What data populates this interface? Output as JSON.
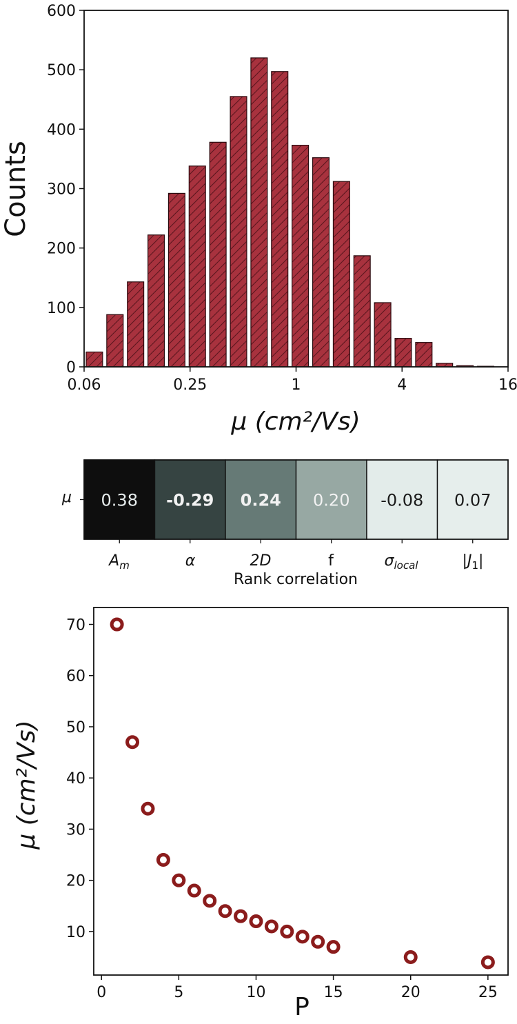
{
  "chart_data": [
    {
      "type": "bar",
      "xlabel": "μ (cm²/Vs)",
      "ylabel": "Counts",
      "x_scale": "log2",
      "xlim": [
        0.0625,
        16
      ],
      "ylim": [
        0,
        600
      ],
      "xticks": [
        "0.06",
        "0.25",
        "1",
        "4",
        "16"
      ],
      "yticks": [
        "0",
        "100",
        "200",
        "300",
        "400",
        "500",
        "600"
      ],
      "bar_color": "#a8323e",
      "bars": [
        {
          "left": 0.0625,
          "right": 0.0818,
          "count": 25
        },
        {
          "left": 0.0818,
          "right": 0.1071,
          "count": 88
        },
        {
          "left": 0.1071,
          "right": 0.1402,
          "count": 143
        },
        {
          "left": 0.1402,
          "right": 0.1835,
          "count": 222
        },
        {
          "left": 0.1835,
          "right": 0.2402,
          "count": 292
        },
        {
          "left": 0.2402,
          "right": 0.3145,
          "count": 338
        },
        {
          "left": 0.3145,
          "right": 0.4117,
          "count": 378
        },
        {
          "left": 0.4117,
          "right": 0.5389,
          "count": 455
        },
        {
          "left": 0.5389,
          "right": 0.7055,
          "count": 520
        },
        {
          "left": 0.7055,
          "right": 0.9236,
          "count": 497
        },
        {
          "left": 0.9236,
          "right": 1.209,
          "count": 373
        },
        {
          "left": 1.209,
          "right": 1.583,
          "count": 352
        },
        {
          "left": 1.583,
          "right": 2.072,
          "count": 312
        },
        {
          "left": 2.072,
          "right": 2.712,
          "count": 187
        },
        {
          "left": 2.712,
          "right": 3.551,
          "count": 108
        },
        {
          "left": 3.551,
          "right": 4.648,
          "count": 48
        },
        {
          "left": 4.648,
          "right": 6.085,
          "count": 41
        },
        {
          "left": 6.085,
          "right": 7.966,
          "count": 6
        },
        {
          "left": 7.966,
          "right": 10.43,
          "count": 2
        },
        {
          "left": 10.43,
          "right": 13.65,
          "count": 1
        }
      ]
    },
    {
      "type": "heatmap",
      "row_label": "μ",
      "xlabel": "Rank correlation",
      "columns": [
        {
          "label": "A_m",
          "value": "0.38",
          "bold": false
        },
        {
          "label": "α",
          "value": "-0.29",
          "bold": true
        },
        {
          "label": "2D",
          "value": "0.24",
          "bold": true
        },
        {
          "label": "f",
          "value": "0.20",
          "bold": false
        },
        {
          "label": "σ_local",
          "value": "-0.08",
          "bold": false
        },
        {
          "label": "|J1|",
          "value": "0.07",
          "bold": false
        }
      ],
      "cell_colors": [
        "#0e0e0e",
        "#364442",
        "#667a76",
        "#97a8a3",
        "#e3ecea",
        "#e6eeec"
      ],
      "text_colors": [
        "#e8eeee",
        "#f2f2f2",
        "#f2f2f2",
        "#f2f2f2",
        "#1a1a1a",
        "#1a1a1a"
      ]
    },
    {
      "type": "scatter",
      "xlabel": "P",
      "ylabel": "μ (cm²/Vs)",
      "xlim": [
        -0.5,
        26.3
      ],
      "ylim": [
        1.5,
        73.3
      ],
      "xticks": [
        "0",
        "5",
        "10",
        "15",
        "20",
        "25"
      ],
      "yticks": [
        "10",
        "20",
        "30",
        "40",
        "50",
        "60",
        "70"
      ],
      "marker_color": "#8b1c1c",
      "points": [
        {
          "x": 1,
          "y": 70
        },
        {
          "x": 2,
          "y": 47
        },
        {
          "x": 3,
          "y": 34
        },
        {
          "x": 4,
          "y": 24
        },
        {
          "x": 5,
          "y": 20
        },
        {
          "x": 6,
          "y": 18
        },
        {
          "x": 7,
          "y": 16
        },
        {
          "x": 8,
          "y": 14
        },
        {
          "x": 9,
          "y": 13
        },
        {
          "x": 10,
          "y": 12
        },
        {
          "x": 11,
          "y": 11
        },
        {
          "x": 12,
          "y": 10
        },
        {
          "x": 13,
          "y": 9
        },
        {
          "x": 14,
          "y": 8
        },
        {
          "x": 15,
          "y": 7
        },
        {
          "x": 20,
          "y": 5
        },
        {
          "x": 25,
          "y": 4
        }
      ]
    }
  ]
}
